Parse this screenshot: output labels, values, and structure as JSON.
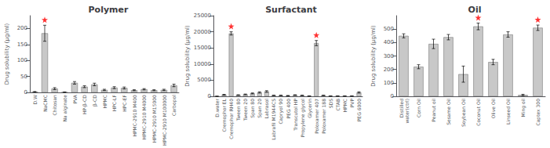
{
  "chart_data": [
    {
      "type": "bar",
      "title": "Polymer",
      "ylabel": "Drug solubility (μg/ml)",
      "categories": [
        "D.W",
        "NaCMC",
        "Chitosan",
        "Na alginate",
        "PVA",
        "HP-β-CD",
        "β-CD",
        "HPMC",
        "HPC-LF",
        "HPC-EF",
        "HPMC-2910 M400",
        "HPMC-2910 M4000",
        "HPMC-2910 M15000",
        "HPMC-2910 M100000",
        "Carbopol"
      ],
      "values": [
        2,
        185,
        12,
        1,
        30,
        18,
        25,
        8,
        15,
        14,
        7,
        10,
        7,
        8,
        22
      ],
      "errors": [
        1,
        25,
        3,
        0.5,
        4,
        3,
        4,
        2,
        3,
        3,
        1.5,
        2,
        1.5,
        2,
        4
      ],
      "star_indices": [
        1
      ],
      "star_color": "red",
      "color": "#c8c8c8",
      "ylim": [
        0,
        240
      ],
      "yticks": [
        0,
        50,
        100,
        150,
        200
      ],
      "grid": false
    },
    {
      "type": "bar",
      "title": "Surfactant",
      "ylabel": "Drug solubility (μg/ml)",
      "categories": [
        "D.water",
        "Cremophor EL",
        "Cremophor RH40",
        "Tween 80",
        "Tween 20",
        "Span 80",
        "Span 20",
        "Labrasol",
        "Labrafil M1944CS",
        "Capryol 90",
        "PEG 400",
        "Transcutol HP",
        "Propylene glycol",
        "Glycerin",
        "Poloxamer 407",
        "Poloxamer 188",
        "SDS",
        "CTAB",
        "HPMC",
        "PVP",
        "PEG 6000"
      ],
      "values": [
        2,
        500,
        19500,
        400,
        600,
        900,
        1200,
        1500,
        300,
        300,
        200,
        400,
        300,
        100,
        16500,
        300,
        100,
        100,
        100,
        100,
        1200
      ],
      "errors": [
        1,
        100,
        500,
        80,
        100,
        150,
        200,
        250,
        60,
        60,
        40,
        80,
        60,
        20,
        800,
        60,
        20,
        20,
        20,
        20,
        200
      ],
      "star_indices": [
        2,
        14
      ],
      "star_color": "red",
      "color": "#c8c8c8",
      "ylim": [
        0,
        25000
      ],
      "yticks": [
        0,
        5000,
        10000,
        15000,
        20000,
        25000
      ],
      "grid": false
    },
    {
      "type": "bar",
      "title": "Oil",
      "ylabel": "Drug solubility (μg/ml)",
      "categories": [
        "Distilled\nwater(ctrl)",
        "Corn Oil",
        "Peanut oil",
        "Sesame Oil",
        "Soybean Oil",
        "Coconut Oil",
        "Olive Oil",
        "Linseed Oil",
        "Ming oil",
        "Captex 300"
      ],
      "values": [
        450,
        220,
        390,
        440,
        165,
        520,
        255,
        460,
        10,
        510
      ],
      "errors": [
        15,
        15,
        35,
        20,
        60,
        25,
        20,
        20,
        5,
        20
      ],
      "star_indices": [
        5,
        9
      ],
      "star_color": "red",
      "color": "#c8c8c8",
      "ylim": [
        0,
        600
      ],
      "yticks": [
        0,
        100,
        200,
        300,
        400,
        500
      ],
      "grid": false
    }
  ]
}
